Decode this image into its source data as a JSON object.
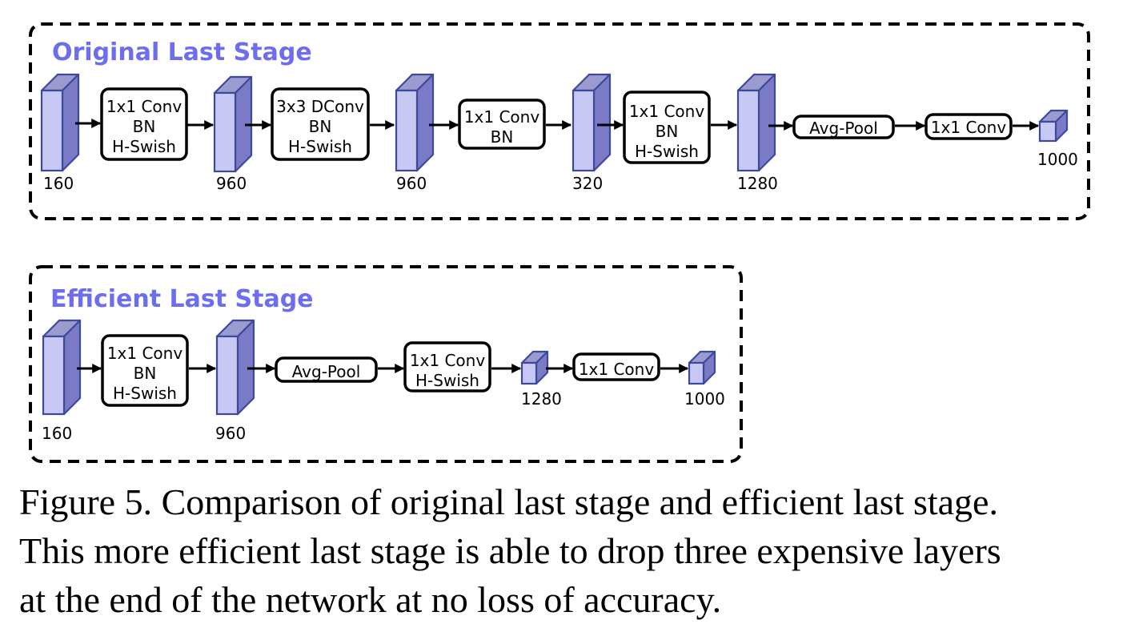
{
  "stages": {
    "original": {
      "title": "Original Last Stage",
      "tensor_labels": [
        "160",
        "960",
        "960",
        "320",
        "1280",
        "1000"
      ],
      "ops": [
        [
          "1x1 Conv",
          "BN",
          "H-Swish"
        ],
        [
          "3x3 DConv",
          "BN",
          "H-Swish"
        ],
        [
          "1x1 Conv",
          "BN"
        ],
        [
          "1x1 Conv",
          "BN",
          "H-Swish"
        ],
        [
          "Avg-Pool"
        ],
        [
          "1x1 Conv"
        ]
      ]
    },
    "efficient": {
      "title": "Efficient Last Stage",
      "tensor_labels": [
        "160",
        "960",
        "1280",
        "1000"
      ],
      "ops": [
        [
          "1x1 Conv",
          "BN",
          "H-Swish"
        ],
        [
          "Avg-Pool"
        ],
        [
          "1x1 Conv",
          "H-Swish"
        ],
        [
          "1x1 Conv"
        ]
      ]
    }
  },
  "caption": {
    "lines": [
      "Figure 5. Comparison of original last stage and efficient last stage.",
      "This more efficient last stage is able to drop three expensive layers",
      "at the end of the network at no loss of accuracy."
    ]
  },
  "colors": {
    "tensor_front": "#c8c8f5",
    "tensor_top": "#9b9bd0",
    "tensor_side": "#7a7ac6",
    "tensor_stroke": "#3c4a9c",
    "title": "#6d6df0"
  }
}
